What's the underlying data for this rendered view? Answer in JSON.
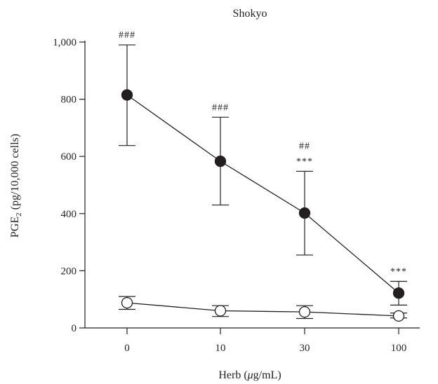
{
  "chart_data": {
    "type": "line",
    "title": "Shokyo",
    "xlabel_main": "Herb (",
    "xlabel_mu": "μ",
    "xlabel_end": "g/mL)",
    "ylabel_main": "PGE",
    "ylabel_sub": "2",
    "ylabel_end": " (pg/10,000 cells)",
    "categories": [
      "0",
      "10",
      "30",
      "100"
    ],
    "ylim": [
      0,
      1000
    ],
    "yticks": [
      0,
      200,
      400,
      600,
      800,
      1000
    ],
    "ytick_labels": [
      "0",
      "200",
      "400",
      "600",
      "800",
      "1,000"
    ],
    "grid": false,
    "series": [
      {
        "marker": "filled-circle",
        "values": [
          815,
          583,
          402,
          122
        ],
        "err_upper": [
          990,
          737,
          548,
          163
        ],
        "err_lower": [
          638,
          430,
          255,
          80
        ]
      },
      {
        "marker": "open-circle",
        "values": [
          88,
          60,
          56,
          42
        ],
        "err_upper": [
          110,
          78,
          78,
          52
        ],
        "err_lower": [
          65,
          40,
          33,
          35
        ]
      }
    ],
    "annotations": [
      {
        "category": 0,
        "lines": [
          "###"
        ]
      },
      {
        "category": 1,
        "lines": [
          "###"
        ]
      },
      {
        "category": 2,
        "lines": [
          "##",
          "***"
        ]
      },
      {
        "category": 3,
        "lines": [
          "***"
        ]
      }
    ]
  }
}
